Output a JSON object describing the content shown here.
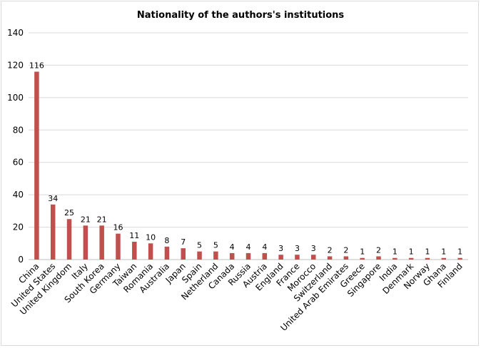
{
  "chart_data": {
    "type": "bar",
    "title": "Nationality of the authors's institutions",
    "xlabel": "",
    "ylabel": "",
    "ylim": [
      0,
      140
    ],
    "yticks": [
      0,
      20,
      40,
      60,
      80,
      100,
      120,
      140
    ],
    "grid": true,
    "legend": "none",
    "bar_color": "#c0504d",
    "categories": [
      "China",
      "United States",
      "United Kingdom",
      "Italy",
      "South Korea",
      "Germany",
      "Taiwan",
      "Romania",
      "Australia",
      "Japan",
      "Spain",
      "Netherland",
      "Canada",
      "Russia",
      "Austria",
      "England",
      "France",
      "Morocco",
      "Switzerland",
      "United Arab Emirates",
      "Greece",
      "Singapore",
      "India",
      "Denmark",
      "Norway",
      "Ghana",
      "Finland"
    ],
    "values": [
      116,
      34,
      25,
      21,
      21,
      16,
      11,
      10,
      8,
      7,
      5,
      5,
      4,
      4,
      4,
      3,
      3,
      3,
      2,
      2,
      1,
      2,
      1,
      1,
      1,
      1,
      1
    ]
  }
}
